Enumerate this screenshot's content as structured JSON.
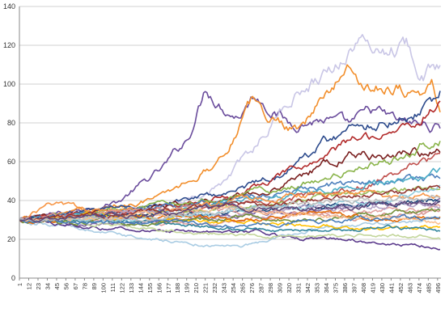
{
  "chart_data": {
    "type": "line",
    "title": "",
    "xlabel": "",
    "ylabel": "",
    "ylim": [
      0,
      140
    ],
    "yticks": [
      0,
      20,
      40,
      60,
      80,
      100,
      120,
      140
    ],
    "xlim": [
      1,
      500
    ],
    "xticks": [
      "1",
      "12",
      "23",
      "34",
      "45",
      "56",
      "67",
      "78",
      "89",
      "100",
      "111",
      "122",
      "133",
      "144",
      "155",
      "166",
      "177",
      "188",
      "199",
      "210",
      "221",
      "232",
      "243",
      "254",
      "265",
      "276",
      "287",
      "298",
      "309",
      "320",
      "331",
      "342",
      "353",
      "364",
      "375",
      "386",
      "397",
      "408",
      "419",
      "430",
      "441",
      "452",
      "463",
      "474",
      "485",
      "496"
    ],
    "grid": "horizontal",
    "legend": "none",
    "start_value": 30,
    "series": [
      {
        "color": "#6a4c9c",
        "anchors": [
          [
            1,
            30
          ],
          [
            60,
            34
          ],
          [
            120,
            40
          ],
          [
            170,
            56
          ],
          [
            200,
            72
          ],
          [
            215,
            90
          ],
          [
            222,
            99
          ],
          [
            240,
            90
          ],
          [
            260,
            84
          ],
          [
            280,
            95
          ],
          [
            300,
            88
          ],
          [
            320,
            80
          ],
          [
            360,
            82
          ],
          [
            390,
            78
          ],
          [
            420,
            86
          ],
          [
            450,
            80
          ],
          [
            500,
            78
          ]
        ]
      },
      {
        "color": "#c9c6e6",
        "anchors": [
          [
            1,
            30
          ],
          [
            100,
            34
          ],
          [
            180,
            38
          ],
          [
            240,
            48
          ],
          [
            280,
            68
          ],
          [
            320,
            92
          ],
          [
            360,
            106
          ],
          [
            380,
            112
          ],
          [
            400,
            122
          ],
          [
            430,
            118
          ],
          [
            460,
            121
          ],
          [
            480,
            106
          ],
          [
            500,
            110
          ]
        ]
      },
      {
        "color": "#f28e2b",
        "anchors": [
          [
            1,
            30
          ],
          [
            100,
            36
          ],
          [
            170,
            42
          ],
          [
            230,
            58
          ],
          [
            250,
            70
          ],
          [
            275,
            90
          ],
          [
            300,
            82
          ],
          [
            330,
            78
          ],
          [
            360,
            92
          ],
          [
            375,
            100
          ],
          [
            390,
            108
          ],
          [
            420,
            98
          ],
          [
            450,
            100
          ],
          [
            475,
            94
          ],
          [
            490,
            100
          ],
          [
            500,
            86
          ]
        ]
      },
      {
        "color": "#2c4a8c",
        "anchors": [
          [
            1,
            30
          ],
          [
            150,
            38
          ],
          [
            250,
            44
          ],
          [
            320,
            56
          ],
          [
            360,
            70
          ],
          [
            400,
            78
          ],
          [
            440,
            82
          ],
          [
            470,
            86
          ],
          [
            490,
            92
          ],
          [
            500,
            96
          ]
        ]
      },
      {
        "color": "#b22a2a",
        "anchors": [
          [
            1,
            30
          ],
          [
            150,
            36
          ],
          [
            250,
            42
          ],
          [
            320,
            54
          ],
          [
            360,
            62
          ],
          [
            400,
            72
          ],
          [
            440,
            76
          ],
          [
            470,
            80
          ],
          [
            490,
            88
          ],
          [
            500,
            90
          ]
        ]
      },
      {
        "color": "#7a2020",
        "anchors": [
          [
            1,
            30
          ],
          [
            200,
            38
          ],
          [
            300,
            46
          ],
          [
            360,
            58
          ],
          [
            400,
            64
          ],
          [
            440,
            62
          ],
          [
            470,
            66
          ],
          [
            500,
            64
          ]
        ]
      },
      {
        "color": "#8ab44a",
        "anchors": [
          [
            1,
            30
          ],
          [
            150,
            36
          ],
          [
            250,
            42
          ],
          [
            350,
            50
          ],
          [
            420,
            58
          ],
          [
            460,
            64
          ],
          [
            480,
            70
          ],
          [
            500,
            72
          ]
        ]
      },
      {
        "color": "#c0504d",
        "anchors": [
          [
            1,
            30
          ],
          [
            200,
            34
          ],
          [
            300,
            40
          ],
          [
            400,
            46
          ],
          [
            450,
            54
          ],
          [
            480,
            60
          ],
          [
            500,
            62
          ]
        ]
      },
      {
        "color": "#4f81bd",
        "anchors": [
          [
            1,
            30
          ],
          [
            120,
            34
          ],
          [
            240,
            40
          ],
          [
            340,
            46
          ],
          [
            420,
            50
          ],
          [
            500,
            52
          ]
        ]
      },
      {
        "color": "#4bacc6",
        "anchors": [
          [
            1,
            30
          ],
          [
            100,
            32
          ],
          [
            200,
            36
          ],
          [
            300,
            42
          ],
          [
            400,
            48
          ],
          [
            460,
            50
          ],
          [
            500,
            55
          ]
        ]
      },
      {
        "color": "#9bbb59",
        "anchors": [
          [
            1,
            30
          ],
          [
            150,
            33
          ],
          [
            300,
            38
          ],
          [
            400,
            44
          ],
          [
            500,
            46
          ]
        ]
      },
      {
        "color": "#f79646",
        "anchors": [
          [
            1,
            30
          ],
          [
            40,
            38
          ],
          [
            80,
            36
          ],
          [
            160,
            34
          ],
          [
            260,
            40
          ],
          [
            360,
            44
          ],
          [
            450,
            42
          ],
          [
            500,
            44
          ]
        ]
      },
      {
        "color": "#8064a2",
        "anchors": [
          [
            1,
            30
          ],
          [
            100,
            28
          ],
          [
            200,
            30
          ],
          [
            300,
            34
          ],
          [
            400,
            36
          ],
          [
            500,
            40
          ]
        ]
      },
      {
        "color": "#1f497d",
        "anchors": [
          [
            1,
            30
          ],
          [
            150,
            32
          ],
          [
            300,
            36
          ],
          [
            400,
            38
          ],
          [
            500,
            40
          ]
        ]
      },
      {
        "color": "#e0a0a0",
        "anchors": [
          [
            1,
            30
          ],
          [
            100,
            30
          ],
          [
            200,
            28
          ],
          [
            300,
            32
          ],
          [
            400,
            34
          ],
          [
            500,
            36
          ]
        ]
      },
      {
        "color": "#a9cce3",
        "anchors": [
          [
            1,
            30
          ],
          [
            100,
            24
          ],
          [
            200,
            18
          ],
          [
            260,
            16
          ],
          [
            300,
            20
          ],
          [
            360,
            26
          ],
          [
            420,
            28
          ],
          [
            500,
            30
          ]
        ]
      },
      {
        "color": "#5b3a8c",
        "anchors": [
          [
            1,
            30
          ],
          [
            100,
            26
          ],
          [
            200,
            24
          ],
          [
            280,
            24
          ],
          [
            330,
            20
          ],
          [
            380,
            20
          ],
          [
            440,
            18
          ],
          [
            500,
            16
          ]
        ]
      },
      {
        "color": "#c3d69b",
        "anchors": [
          [
            1,
            30
          ],
          [
            100,
            28
          ],
          [
            200,
            24
          ],
          [
            300,
            22
          ],
          [
            400,
            22
          ],
          [
            500,
            21
          ]
        ]
      },
      {
        "color": "#ffc000",
        "anchors": [
          [
            1,
            30
          ],
          [
            100,
            32
          ],
          [
            200,
            30
          ],
          [
            300,
            28
          ],
          [
            400,
            26
          ],
          [
            500,
            26
          ]
        ]
      },
      {
        "color": "#31859c",
        "anchors": [
          [
            1,
            30
          ],
          [
            120,
            30
          ],
          [
            240,
            26
          ],
          [
            360,
            24
          ],
          [
            440,
            26
          ],
          [
            500,
            24
          ]
        ]
      },
      {
        "color": "#d99694",
        "anchors": [
          [
            1,
            30
          ],
          [
            100,
            34
          ],
          [
            200,
            36
          ],
          [
            300,
            34
          ],
          [
            400,
            32
          ],
          [
            500,
            33
          ]
        ]
      },
      {
        "color": "#b3a2c7",
        "anchors": [
          [
            1,
            30
          ],
          [
            150,
            34
          ],
          [
            250,
            30
          ],
          [
            350,
            36
          ],
          [
            450,
            38
          ],
          [
            500,
            37
          ]
        ]
      },
      {
        "color": "#76923c",
        "anchors": [
          [
            1,
            30
          ],
          [
            150,
            28
          ],
          [
            250,
            32
          ],
          [
            350,
            30
          ],
          [
            450,
            34
          ],
          [
            500,
            35
          ]
        ]
      },
      {
        "color": "#e46c0a",
        "anchors": [
          [
            1,
            30
          ],
          [
            150,
            32
          ],
          [
            250,
            30
          ],
          [
            350,
            34
          ],
          [
            450,
            30
          ],
          [
            500,
            32
          ]
        ]
      },
      {
        "color": "#93cddd",
        "anchors": [
          [
            1,
            30
          ],
          [
            150,
            30
          ],
          [
            250,
            34
          ],
          [
            350,
            38
          ],
          [
            450,
            42
          ],
          [
            500,
            48
          ]
        ]
      },
      {
        "color": "#953735",
        "anchors": [
          [
            1,
            30
          ],
          [
            150,
            34
          ],
          [
            250,
            38
          ],
          [
            350,
            40
          ],
          [
            450,
            44
          ],
          [
            500,
            46
          ]
        ]
      },
      {
        "color": "#fac090",
        "anchors": [
          [
            1,
            30
          ],
          [
            150,
            32
          ],
          [
            250,
            36
          ],
          [
            350,
            32
          ],
          [
            450,
            30
          ],
          [
            500,
            29
          ]
        ]
      },
      {
        "color": "#4a7ebb",
        "anchors": [
          [
            1,
            30
          ],
          [
            150,
            29
          ],
          [
            250,
            27
          ],
          [
            350,
            29
          ],
          [
            450,
            31
          ],
          [
            500,
            30
          ]
        ]
      },
      {
        "color": "#bfbfbf",
        "anchors": [
          [
            1,
            30
          ],
          [
            150,
            31
          ],
          [
            250,
            35
          ],
          [
            350,
            39
          ],
          [
            450,
            41
          ],
          [
            500,
            43
          ]
        ]
      },
      {
        "color": "#60497a",
        "anchors": [
          [
            1,
            30
          ],
          [
            150,
            33
          ],
          [
            250,
            37
          ],
          [
            350,
            35
          ],
          [
            450,
            39
          ],
          [
            500,
            38
          ]
        ]
      }
    ]
  }
}
